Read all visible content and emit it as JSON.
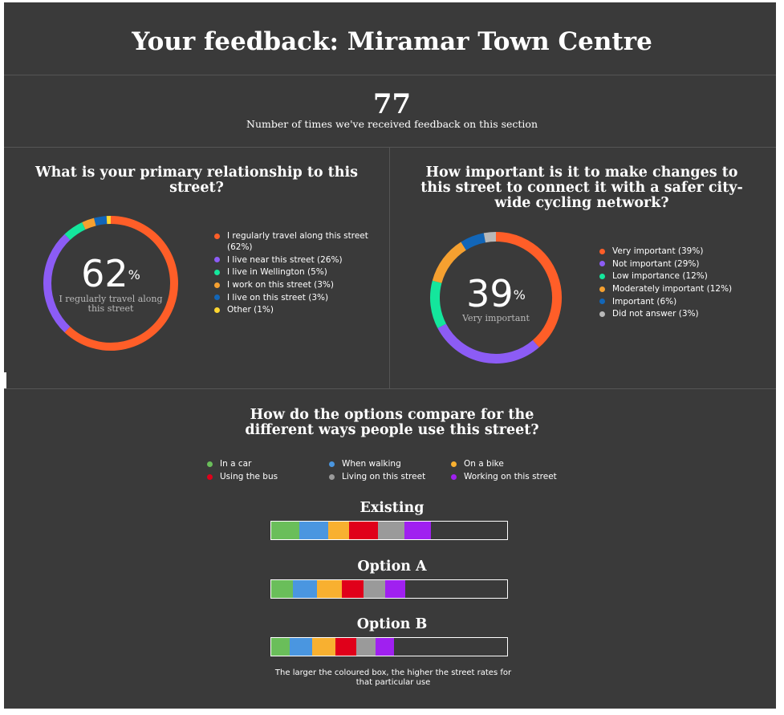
{
  "title": "Your feedback: Miramar Town Centre",
  "feedback_count": "77",
  "feedback_count_label": "Number of times we've received feedback on this section",
  "chart_data": [
    {
      "type": "pie",
      "title": "What is your primary relationship to this street?",
      "center_value": "62",
      "center_unit": "%",
      "center_label": "I regularly travel along this street",
      "slices": [
        {
          "label": "I regularly travel along this street (62%)",
          "value": 62,
          "color": "#ff5e28"
        },
        {
          "label": "I live near this street (26%)",
          "value": 26,
          "color": "#8c5cf5"
        },
        {
          "label": "I live in Wellington (5%)",
          "value": 5,
          "color": "#14e69c"
        },
        {
          "label": "I work on this street (3%)",
          "value": 3,
          "color": "#f5a030"
        },
        {
          "label": "I live on this street (3%)",
          "value": 3,
          "color": "#1266b8"
        },
        {
          "label": "Other (1%)",
          "value": 1,
          "color": "#ffd630"
        }
      ]
    },
    {
      "type": "pie",
      "title": "How important is it to make changes to this street to connect it with a safer city-wide cycling network?",
      "center_value": "39",
      "center_unit": "%",
      "center_label": "Very important",
      "slices": [
        {
          "label": "Very important (39%)",
          "value": 39,
          "color": "#ff5e28"
        },
        {
          "label": "Not important (29%)",
          "value": 29,
          "color": "#8c5cf5"
        },
        {
          "label": "Low importance (12%)",
          "value": 12,
          "color": "#14e69c"
        },
        {
          "label": "Moderately important (12%)",
          "value": 12,
          "color": "#f5a030"
        },
        {
          "label": "Important (6%)",
          "value": 6,
          "color": "#1266b8"
        },
        {
          "label": "Did not answer (3%)",
          "value": 3,
          "color": "#b8b8b8"
        }
      ]
    },
    {
      "type": "bar",
      "title": "How do the options compare for the different ways people use this street?",
      "series": [
        {
          "name": "In a car",
          "color": "#6abe5a"
        },
        {
          "name": "Using the bus",
          "color": "#e0001a"
        },
        {
          "name": "When walking",
          "color": "#4a96e0"
        },
        {
          "name": "Living on this street",
          "color": "#9a9a9a"
        },
        {
          "name": "On a bike",
          "color": "#f8b030"
        },
        {
          "name": "Working on this street",
          "color": "#a020f0"
        }
      ],
      "segment_order": [
        "In a car",
        "When walking",
        "On a bike",
        "Using the bus",
        "Living on this street",
        "Working on this street"
      ],
      "bars": [
        {
          "name": "Existing",
          "values": [
            35,
            36,
            27,
            36,
            33,
            33
          ]
        },
        {
          "name": "Option A",
          "values": [
            27,
            30,
            32,
            27,
            27,
            25
          ]
        },
        {
          "name": "Option B",
          "values": [
            23,
            28,
            30,
            26,
            24,
            23
          ]
        }
      ],
      "max_total": 296
    }
  ],
  "footnote": "The larger the coloured box, the higher the street rates for that particular use"
}
